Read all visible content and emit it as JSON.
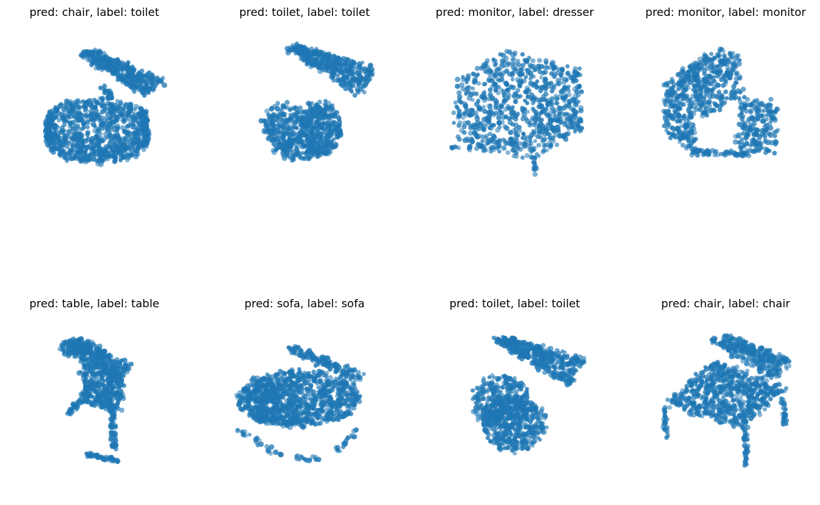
{
  "style": {
    "point_color": "#1f77b4"
  },
  "chart_data": [
    {
      "type": "scatter",
      "title": "pred: chair, label: toilet",
      "object": "toilet"
    },
    {
      "type": "scatter",
      "title": "pred: toilet, label: toilet",
      "object": "toilet"
    },
    {
      "type": "scatter",
      "title": "pred: monitor, label: dresser",
      "object": "dresser"
    },
    {
      "type": "scatter",
      "title": "pred: monitor, label: monitor",
      "object": "monitor"
    },
    {
      "type": "scatter",
      "title": "pred: table, label: table",
      "object": "table"
    },
    {
      "type": "scatter",
      "title": "pred: sofa, label: sofa",
      "object": "sofa"
    },
    {
      "type": "scatter",
      "title": "pred: toilet, label: toilet",
      "object": "toilet"
    },
    {
      "type": "scatter",
      "title": "pred: chair, label: chair",
      "object": "chair"
    }
  ]
}
